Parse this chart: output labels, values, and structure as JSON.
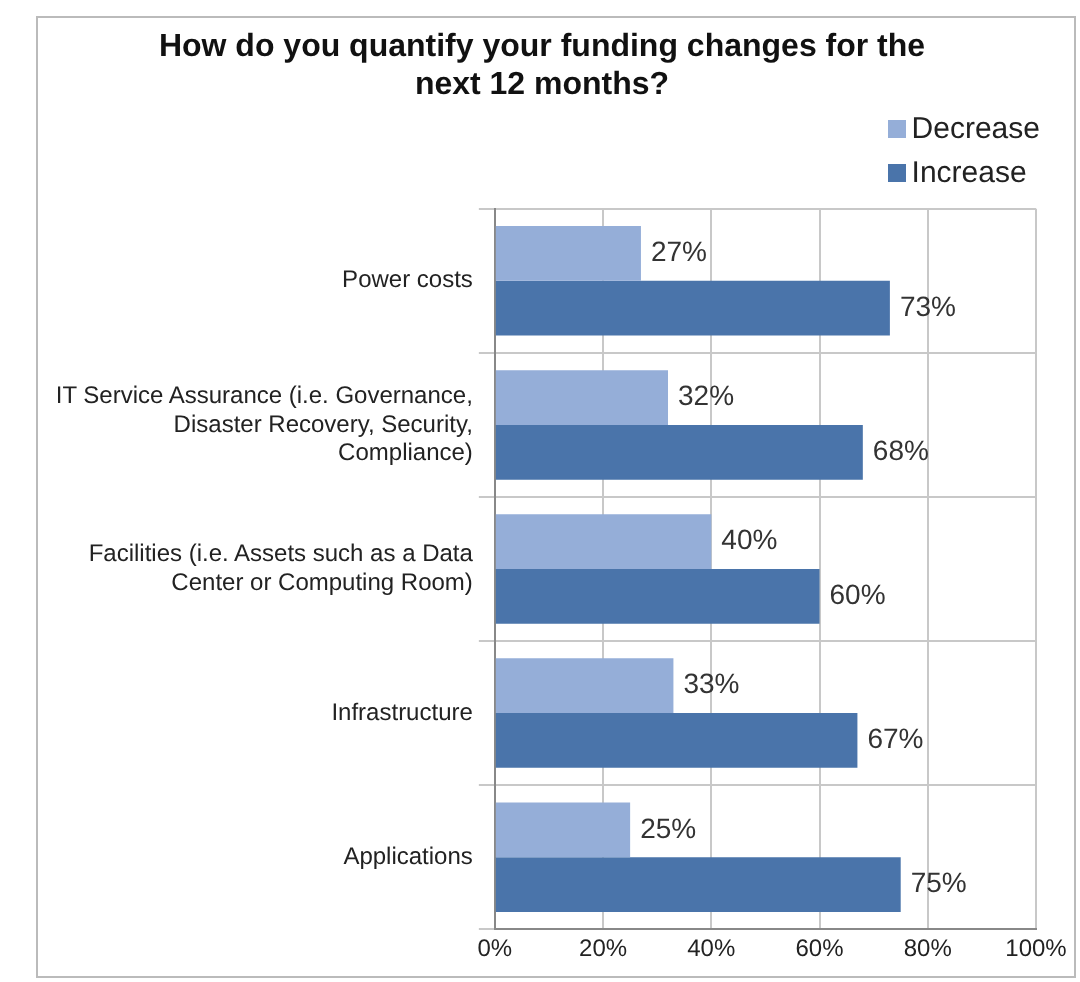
{
  "chart_data": {
    "type": "bar",
    "orientation": "horizontal",
    "title": "How do you quantify your funding changes for the next 12 months?",
    "categories": [
      "Power costs",
      "IT Service Assurance (i.e. Governance, Disaster Recovery, Security, Compliance)",
      "Facilities (i.e. Assets such as a Data Center or Computing Room)",
      "Infrastructure",
      "Applications"
    ],
    "series": [
      {
        "name": "Decrease",
        "color": "#95aed8",
        "values": [
          27,
          32,
          40,
          33,
          25
        ],
        "value_labels": [
          "27%",
          "32%",
          "40%",
          "33%",
          "25%"
        ]
      },
      {
        "name": "Increase",
        "color": "#4a74aa",
        "values": [
          73,
          68,
          60,
          67,
          75
        ],
        "value_labels": [
          "73%",
          "68%",
          "60%",
          "67%",
          "75%"
        ]
      }
    ],
    "xlim": [
      0,
      100
    ],
    "xticks": [
      {
        "value": 0,
        "label": "0%"
      },
      {
        "value": 20,
        "label": "20%"
      },
      {
        "value": 40,
        "label": "40%"
      },
      {
        "value": 60,
        "label": "60%"
      },
      {
        "value": 80,
        "label": "80%"
      },
      {
        "value": 100,
        "label": "100%"
      }
    ],
    "grid": true,
    "legend": "top right"
  }
}
